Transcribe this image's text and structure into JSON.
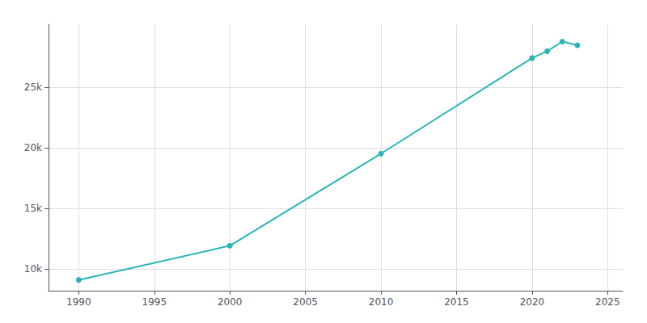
{
  "chart_data": {
    "type": "line",
    "x": [
      1990,
      2000,
      2010,
      2020,
      2021,
      2022,
      2023
    ],
    "values": [
      9090,
      11913,
      19515,
      27408,
      27977,
      28766,
      28468
    ],
    "color": "#2ab5b5",
    "marker": "circle",
    "xlim": [
      1988,
      2026
    ],
    "xticks": [
      1990,
      1995,
      2000,
      2005,
      2010,
      2015,
      2020,
      2025
    ],
    "ylim": [
      8200,
      30200
    ],
    "yticks": [
      {
        "value": 10000,
        "label": "10k"
      },
      {
        "value": 15000,
        "label": "15k"
      },
      {
        "value": 20000,
        "label": "20k"
      },
      {
        "value": 25000,
        "label": "25k"
      }
    ],
    "grid": true
  }
}
